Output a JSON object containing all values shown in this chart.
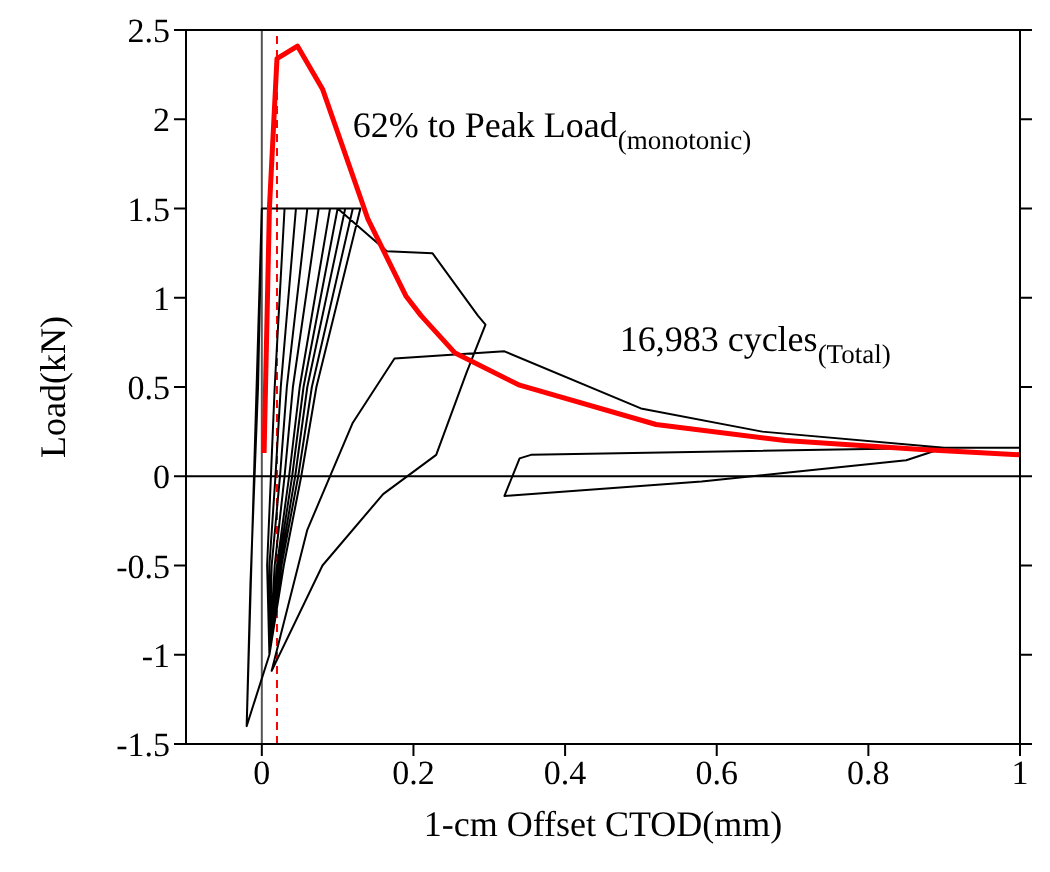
{
  "chart_data": {
    "type": "line",
    "xlabel": "1-cm Offset CTOD(mm)",
    "ylabel": "Load(kN)",
    "xlim": [
      -0.1,
      1
    ],
    "xticks": [
      0,
      0.2,
      0.4,
      0.6,
      0.8,
      1
    ],
    "ylim": [
      -1.5,
      2.5
    ],
    "yticks": [
      -1.5,
      -1,
      -0.5,
      0,
      0.5,
      1,
      1.5,
      2,
      2.5
    ],
    "marker": "none",
    "line_style": "solid",
    "series": [
      {
        "color": "#000000",
        "x": [
          -0.02,
          -0.015,
          -0.005,
          0,
          0.03,
          0.017,
          0.012,
          0.007,
          0.01,
          -0.02,
          -0.015,
          -0.005,
          0,
          0.045,
          0.025,
          0.018,
          0.01,
          0.01,
          -0.02,
          -0.015,
          -0.005,
          0,
          0.06,
          0.033,
          0.024,
          0.013,
          0.01,
          -0.02,
          -0.015,
          -0.005,
          0,
          0.075,
          0.041,
          0.03,
          0.017,
          0.01,
          -0.02,
          -0.015,
          -0.005,
          0,
          0.09,
          0.05,
          0.036,
          0.02,
          0.01,
          -0.02,
          -0.015,
          -0.005,
          0,
          0.1,
          0.055,
          0.04,
          0.022,
          0.01,
          -0.02,
          -0.015,
          -0.005,
          0,
          0.11,
          0.06,
          0.044,
          0.024,
          0.01,
          -0.02,
          -0.015,
          -0.005,
          0,
          0.12,
          0.066,
          0.048,
          0.026,
          0.01,
          -0.02,
          -0.015,
          -0.005,
          0,
          0.13,
          0.072,
          0.052,
          0.029,
          0.01,
          -0.02,
          0,
          0.1,
          0.165,
          0.225,
          0.285,
          0.295,
          0.27,
          0.23,
          0.16,
          0.08,
          0.013,
          0.06,
          0.12,
          0.175,
          0.32,
          0.5,
          0.66,
          0.9,
          0.85,
          0.58,
          0.32,
          0.34,
          0.355,
          0.9,
          1
        ],
        "values": [
          -1.4,
          -0.6,
          0.5,
          1.5,
          1.5,
          0.5,
          0,
          -0.5,
          -1,
          -1.4,
          -0.6,
          0.5,
          1.5,
          1.5,
          0.5,
          0,
          -0.5,
          -1,
          -1.4,
          -0.6,
          0.5,
          1.5,
          1.5,
          0.5,
          0,
          -0.5,
          -1,
          -1.4,
          -0.6,
          0.5,
          1.5,
          1.5,
          0.5,
          0,
          -0.5,
          -1,
          -1.4,
          -0.6,
          0.5,
          1.5,
          1.5,
          0.5,
          0,
          -0.5,
          -1,
          -1.4,
          -0.6,
          0.5,
          1.5,
          1.5,
          0.5,
          0,
          -0.5,
          -1,
          -1.4,
          -0.6,
          0.5,
          1.5,
          1.5,
          0.5,
          0,
          -0.5,
          -1,
          -1.4,
          -0.6,
          0.5,
          1.5,
          1.5,
          0.5,
          0,
          -0.5,
          -1,
          -1.4,
          -0.6,
          0.5,
          1.5,
          1.5,
          0.5,
          0,
          -0.5,
          -1,
          -1.4,
          1.5,
          1.5,
          1.26,
          1.25,
          0.9,
          0.85,
          0.58,
          0.12,
          -0.1,
          -0.5,
          -1.09,
          -0.3,
          0.3,
          0.66,
          0.7,
          0.38,
          0.25,
          0.16,
          0.09,
          -0.03,
          -0.11,
          0.1,
          0.12,
          0.16,
          0.16
        ]
      },
      {
        "color": "#ff0000",
        "x": [
          0.003,
          0.01,
          0.02,
          0.047,
          0.08,
          0.14,
          0.19,
          0.21,
          0.255,
          0.34,
          0.52,
          0.69,
          0.87,
          1
        ],
        "values": [
          0.13,
          1.5,
          2.34,
          2.41,
          2.17,
          1.44,
          1.01,
          0.9,
          0.69,
          0.51,
          0.29,
          0.2,
          0.15,
          0.12
        ]
      }
    ],
    "ref_lines": [
      {
        "axis": "x",
        "value": 0,
        "color": "#555555"
      },
      {
        "axis": "y",
        "value": 0,
        "color": "#000000"
      },
      {
        "axis": "x",
        "value": 0.02,
        "color": "#ff0000",
        "line_style": "dashed"
      }
    ],
    "annotations": [
      "62% to Peak Load$_{(monotonic)}$",
      "16,983 cycles$_{(Total)}$"
    ]
  }
}
